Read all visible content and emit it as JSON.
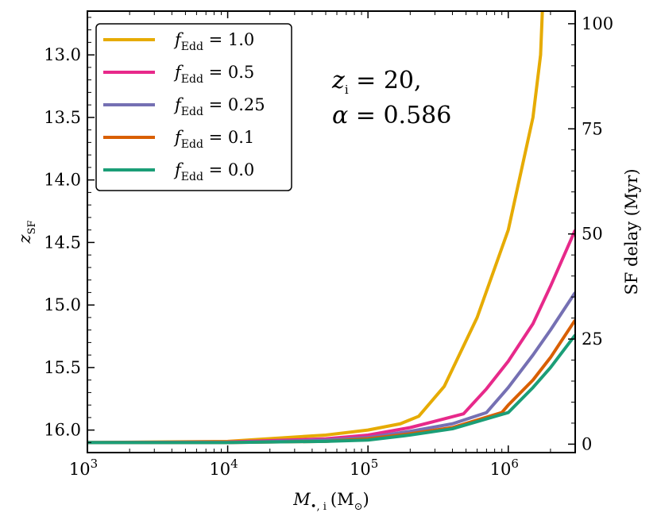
{
  "chart_data": {
    "type": "line",
    "xscale": "log",
    "xlim": [
      1000,
      3000000
    ],
    "ylim_left": [
      12.65,
      16.18
    ],
    "ylim_right": [
      -2,
      103
    ],
    "ylabel_left": {
      "main": "z",
      "sub": "SF"
    },
    "ylabel_right": "SF delay (Myr)",
    "xlabel": {
      "main": "M",
      "sub": "•, i",
      "unit": "(M",
      "unit_sub": "⊙",
      "unit_close": ")"
    },
    "x_ticks": [
      {
        "value": 1000,
        "base": "10",
        "exp": "3"
      },
      {
        "value": 10000,
        "base": "10",
        "exp": "4"
      },
      {
        "value": 100000,
        "base": "10",
        "exp": "5"
      },
      {
        "value": 1000000,
        "base": "10",
        "exp": "6"
      }
    ],
    "y_left_ticks": [
      {
        "value": 13.0,
        "label": "13.0"
      },
      {
        "value": 13.5,
        "label": "13.5"
      },
      {
        "value": 14.0,
        "label": "14.0"
      },
      {
        "value": 14.5,
        "label": "14.5"
      },
      {
        "value": 15.0,
        "label": "15.0"
      },
      {
        "value": 15.5,
        "label": "15.5"
      },
      {
        "value": 16.0,
        "label": "16.0"
      }
    ],
    "y_right_ticks": [
      {
        "value": 0,
        "label": "0"
      },
      {
        "value": 25,
        "label": "25"
      },
      {
        "value": 50,
        "label": "50"
      },
      {
        "value": 75,
        "label": "75"
      },
      {
        "value": 100,
        "label": "100"
      }
    ],
    "annotation": {
      "line1": {
        "var": "z",
        "sub": "i",
        "rest": " = 20,"
      },
      "line2": {
        "var": "α",
        "rest": " = 0.586"
      }
    },
    "series": [
      {
        "name": "f_Edd = 1.0",
        "legend_var": "f",
        "legend_sub": "Edd",
        "legend_value": " = 1.0",
        "color": "#e6ab02",
        "points": [
          [
            1000,
            16.1
          ],
          [
            10000,
            16.09
          ],
          [
            50000,
            16.04
          ],
          [
            100000,
            16.0
          ],
          [
            170000,
            15.95
          ],
          [
            230000,
            15.89
          ],
          [
            350000,
            15.65
          ],
          [
            600000,
            15.1
          ],
          [
            1000000,
            14.4
          ],
          [
            1500000,
            13.5
          ],
          [
            1700000,
            13.0
          ],
          [
            1750000,
            12.65
          ]
        ]
      },
      {
        "name": "f_Edd = 0.5",
        "legend_var": "f",
        "legend_sub": "Edd",
        "legend_value": " = 0.5",
        "color": "#e7298a",
        "points": [
          [
            1000,
            16.1
          ],
          [
            10000,
            16.095
          ],
          [
            50000,
            16.07
          ],
          [
            100000,
            16.04
          ],
          [
            200000,
            15.98
          ],
          [
            300000,
            15.93
          ],
          [
            480000,
            15.87
          ],
          [
            700000,
            15.67
          ],
          [
            1000000,
            15.45
          ],
          [
            1500000,
            15.15
          ],
          [
            2000000,
            14.85
          ],
          [
            3000000,
            14.4
          ]
        ]
      },
      {
        "name": "f_Edd = 0.25",
        "legend_var": "f",
        "legend_sub": "Edd",
        "legend_value": " = 0.25",
        "color": "#7570b3",
        "points": [
          [
            1000,
            16.1
          ],
          [
            10000,
            16.1
          ],
          [
            50000,
            16.08
          ],
          [
            100000,
            16.06
          ],
          [
            200000,
            16.01
          ],
          [
            400000,
            15.95
          ],
          [
            700000,
            15.86
          ],
          [
            1000000,
            15.66
          ],
          [
            1500000,
            15.4
          ],
          [
            2000000,
            15.2
          ],
          [
            3000000,
            14.9
          ]
        ]
      },
      {
        "name": "f_Edd = 0.1",
        "legend_var": "f",
        "legend_sub": "Edd",
        "legend_value": " = 0.1",
        "color": "#d95f02",
        "points": [
          [
            1000,
            16.1
          ],
          [
            10000,
            16.1
          ],
          [
            50000,
            16.09
          ],
          [
            100000,
            16.07
          ],
          [
            200000,
            16.03
          ],
          [
            400000,
            15.98
          ],
          [
            900000,
            15.86
          ],
          [
            1000000,
            15.8
          ],
          [
            1500000,
            15.6
          ],
          [
            2000000,
            15.42
          ],
          [
            3000000,
            15.12
          ]
        ]
      },
      {
        "name": "f_Edd = 0.0",
        "legend_var": "f",
        "legend_sub": "Edd",
        "legend_value": " = 0.0",
        "color": "#1b9e77",
        "points": [
          [
            1000,
            16.1
          ],
          [
            10000,
            16.1
          ],
          [
            50000,
            16.09
          ],
          [
            100000,
            16.08
          ],
          [
            200000,
            16.04
          ],
          [
            400000,
            15.99
          ],
          [
            1000000,
            15.86
          ],
          [
            1500000,
            15.66
          ],
          [
            2000000,
            15.5
          ],
          [
            3000000,
            15.24
          ]
        ]
      }
    ]
  }
}
